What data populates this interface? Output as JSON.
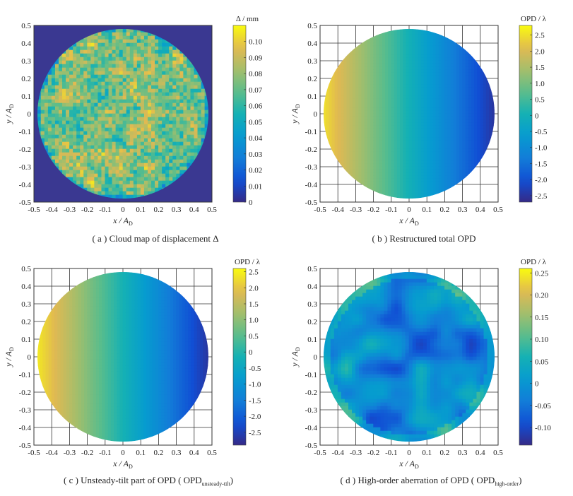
{
  "chart_data": [
    {
      "type": "heatmap",
      "panel_id": "a",
      "caption": "( a )  Cloud map of displacement Δ",
      "xlabel": "x / A",
      "xlabel_sub": "D",
      "ylabel": "y / A",
      "ylabel_sub": "D",
      "xlim": [
        -0.5,
        0.5
      ],
      "ylim": [
        -0.5,
        0.5
      ],
      "xticks": [
        "-0.5",
        "-0.4",
        "-0.3",
        "-0.2",
        "-0.1",
        "0",
        "0.1",
        "0.2",
        "0.3",
        "0.4",
        "0.5"
      ],
      "yticks": [
        "0.5",
        "0.4",
        "0.3",
        "0.2",
        "0.1",
        "0",
        "-0.1",
        "-0.2",
        "-0.3",
        "-0.4",
        "-0.5"
      ],
      "grid": false,
      "colorbar_title": "Δ / mm",
      "colorbar_range": [
        0,
        0.11
      ],
      "colorbar_ticks": [
        "0.10",
        "0.09",
        "0.08",
        "0.07",
        "0.06",
        "0.05",
        "0.04",
        "0.03",
        "0.02",
        "0.01",
        "0"
      ],
      "colormap": "parula",
      "pattern": "noisy",
      "mean_value": 0.075,
      "background_color": "#3a3891"
    },
    {
      "type": "heatmap",
      "panel_id": "b",
      "caption": "( b )  Restructured total OPD",
      "xlabel": "x / A",
      "xlabel_sub": "D",
      "ylabel": "y / A",
      "ylabel_sub": "D",
      "xlim": [
        -0.5,
        0.5
      ],
      "ylim": [
        -0.5,
        0.5
      ],
      "xticks": [
        "-0.5",
        "-0.4",
        "-0.3",
        "-0.2",
        "-0.1",
        "0",
        "0.1",
        "0.2",
        "0.3",
        "0.4",
        "0.5"
      ],
      "yticks": [
        "0.5",
        "0.4",
        "0.3",
        "0.2",
        "0.1",
        "0",
        "-0.1",
        "-0.2",
        "-0.3",
        "-0.4",
        "-0.5"
      ],
      "grid": true,
      "colorbar_title": "OPD / λ",
      "colorbar_range": [
        -2.7,
        2.8
      ],
      "colorbar_ticks": [
        "2.5",
        "2.0",
        "1.5",
        "1.0",
        "0.5",
        "0",
        "-0.5",
        "-1.0",
        "-1.5",
        "-2.0",
        "-2.5"
      ],
      "colormap": "parula",
      "pattern": "tilt-x",
      "value_at_x_min": 2.6,
      "value_at_x_max": -2.6
    },
    {
      "type": "heatmap",
      "panel_id": "c",
      "caption": "( c )  Unsteady-tilt part of OPD ( OPD",
      "caption_sub": "unsteady-tilt",
      "caption_end": ")",
      "xlabel": "x / A",
      "xlabel_sub": "D",
      "ylabel": "y / A",
      "ylabel_sub": "D",
      "xlim": [
        -0.5,
        0.5
      ],
      "ylim": [
        -0.5,
        0.5
      ],
      "xticks": [
        "-0.5",
        "-0.4",
        "-0.3",
        "-0.2",
        "-0.1",
        "0",
        "0.1",
        "0.2",
        "0.3",
        "0.4",
        "0.5"
      ],
      "yticks": [
        "0.5",
        "0.4",
        "0.3",
        "0.2",
        "0.1",
        "0",
        "-0.1",
        "-0.2",
        "-0.3",
        "-0.4",
        "-0.5"
      ],
      "grid": true,
      "colorbar_title": "OPD / λ",
      "colorbar_range": [
        -2.9,
        2.6
      ],
      "colorbar_ticks": [
        "2.5",
        "2.0",
        "1.5",
        "1.0",
        "0.5",
        "0",
        "-0.5",
        "-1.0",
        "-1.5",
        "-2.0",
        "-2.5"
      ],
      "colormap": "parula",
      "pattern": "tilt-x",
      "value_at_x_min": 2.5,
      "value_at_x_max": -2.8
    },
    {
      "type": "heatmap",
      "panel_id": "d",
      "caption": "( d )  High-order aberration of OPD ( OPD",
      "caption_sub": "high-order",
      "caption_end": ")",
      "xlabel": "x / A",
      "xlabel_sub": "D",
      "ylabel": "y / A",
      "ylabel_sub": "D",
      "xlim": [
        -0.5,
        0.5
      ],
      "ylim": [
        -0.5,
        0.5
      ],
      "xticks": [
        "-0.5",
        "-0.4",
        "-0.3",
        "-0.2",
        "-0.1",
        "0",
        "0.1",
        "0.2",
        "0.3",
        "0.4",
        "0.5"
      ],
      "yticks": [
        "0.5",
        "0.4",
        "0.3",
        "0.2",
        "0.1",
        "0",
        "-0.1",
        "-0.2",
        "-0.3",
        "-0.4",
        "-0.5"
      ],
      "grid": true,
      "colorbar_title": "OPD / λ",
      "colorbar_range": [
        -0.14,
        0.26
      ],
      "colorbar_ticks": [
        "0.25",
        "0.20",
        "0.15",
        "0.10",
        "0.05",
        "0",
        "-0.05",
        "-0.10"
      ],
      "colormap": "parula",
      "pattern": "smooth-blobs",
      "mean_value": -0.03
    }
  ]
}
